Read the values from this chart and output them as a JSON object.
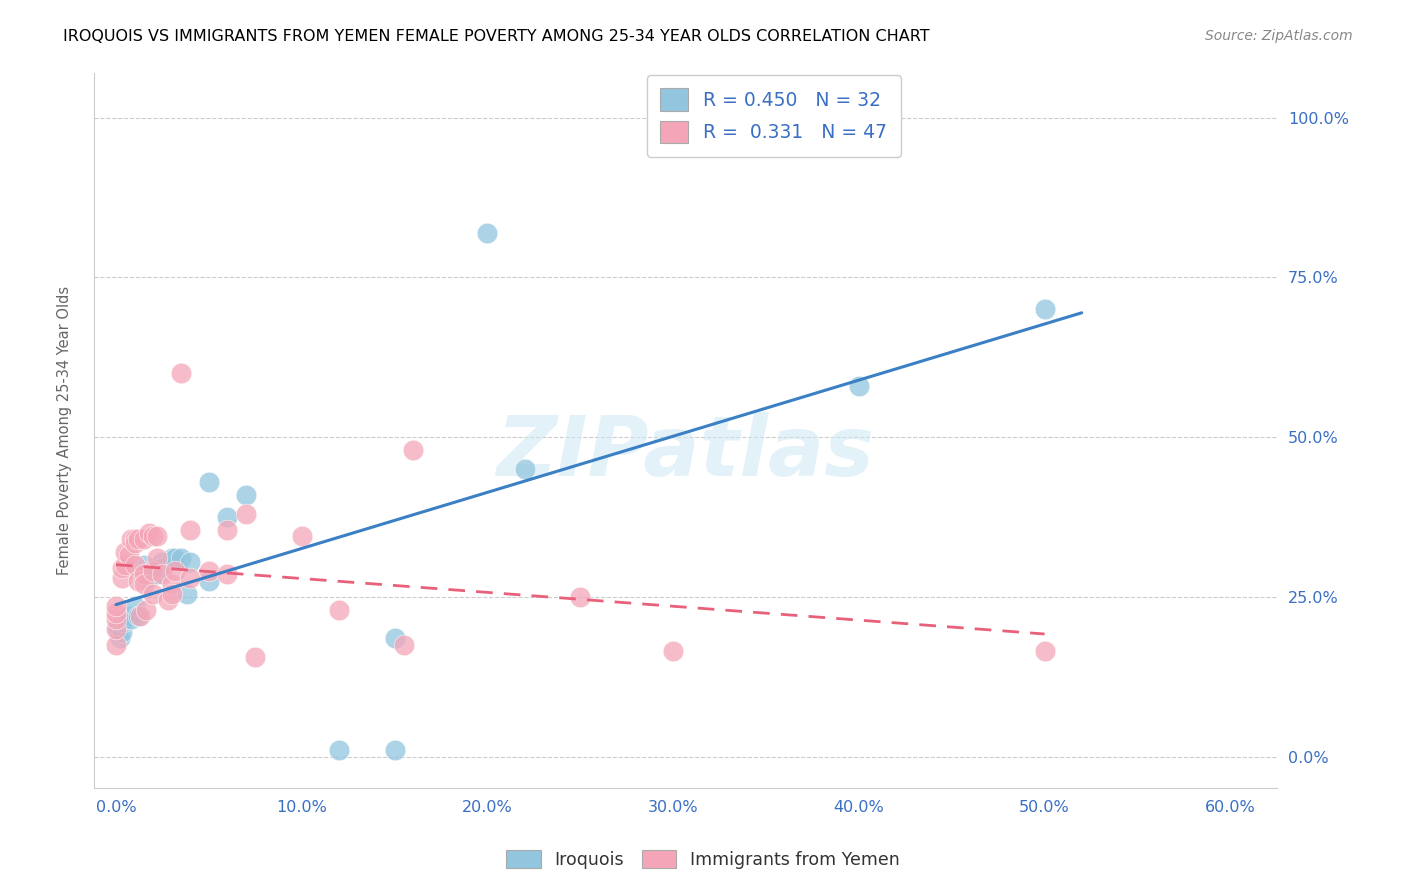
{
  "title": "IROQUOIS VS IMMIGRANTS FROM YEMEN FEMALE POVERTY AMONG 25-34 YEAR OLDS CORRELATION CHART",
  "source": "Source: ZipAtlas.com",
  "ylabel": "Female Poverty Among 25-34 Year Olds",
  "xlabel_ticks": [
    "0.0%",
    "10.0%",
    "20.0%",
    "30.0%",
    "40.0%",
    "50.0%",
    "60.0%"
  ],
  "xlabel_vals": [
    0.0,
    0.1,
    0.2,
    0.3,
    0.4,
    0.5,
    0.6
  ],
  "ylabel_ticks": [
    "0.0%",
    "25.0%",
    "50.0%",
    "75.0%",
    "100.0%"
  ],
  "ylabel_vals": [
    0.0,
    0.25,
    0.5,
    0.75,
    1.0
  ],
  "xlim": [
    -0.012,
    0.625
  ],
  "ylim": [
    -0.05,
    1.07
  ],
  "leg1_text": "R = 0.450   N = 32",
  "leg2_text": "R =  0.331   N = 47",
  "series1_name": "Iroquois",
  "series2_name": "Immigrants from Yemen",
  "color_blue": "#92c5de",
  "color_pink": "#f4a6b8",
  "color_blue_line": "#3b7fc4",
  "color_pink_line": "#e8607a",
  "iroquois_x": [
    0.001,
    0.002,
    0.003,
    0.004,
    0.005,
    0.007,
    0.008,
    0.01,
    0.012,
    0.015,
    0.017,
    0.018,
    0.02,
    0.022,
    0.025,
    0.025,
    0.03,
    0.032,
    0.035,
    0.038,
    0.04,
    0.05,
    0.05,
    0.06,
    0.07,
    0.12,
    0.15,
    0.15,
    0.2,
    0.22,
    0.4,
    0.5
  ],
  "iroquois_y": [
    0.2,
    0.185,
    0.195,
    0.21,
    0.215,
    0.22,
    0.215,
    0.235,
    0.22,
    0.3,
    0.285,
    0.28,
    0.285,
    0.285,
    0.305,
    0.295,
    0.31,
    0.31,
    0.31,
    0.255,
    0.305,
    0.43,
    0.275,
    0.375,
    0.41,
    0.01,
    0.185,
    0.01,
    0.82,
    0.45,
    0.58,
    0.7
  ],
  "yemen_x": [
    0.0,
    0.0,
    0.0,
    0.0,
    0.0,
    0.003,
    0.003,
    0.005,
    0.005,
    0.007,
    0.008,
    0.01,
    0.01,
    0.01,
    0.012,
    0.012,
    0.013,
    0.015,
    0.015,
    0.015,
    0.016,
    0.018,
    0.02,
    0.02,
    0.02,
    0.022,
    0.022,
    0.025,
    0.028,
    0.03,
    0.03,
    0.032,
    0.035,
    0.04,
    0.04,
    0.05,
    0.06,
    0.06,
    0.07,
    0.075,
    0.1,
    0.12,
    0.155,
    0.16,
    0.25,
    0.3,
    0.5
  ],
  "yemen_y": [
    0.175,
    0.2,
    0.215,
    0.225,
    0.235,
    0.28,
    0.295,
    0.3,
    0.32,
    0.315,
    0.34,
    0.34,
    0.335,
    0.3,
    0.34,
    0.275,
    0.22,
    0.34,
    0.285,
    0.27,
    0.23,
    0.35,
    0.345,
    0.29,
    0.255,
    0.345,
    0.31,
    0.285,
    0.245,
    0.27,
    0.255,
    0.29,
    0.6,
    0.355,
    0.28,
    0.29,
    0.355,
    0.285,
    0.38,
    0.155,
    0.345,
    0.23,
    0.175,
    0.48,
    0.25,
    0.165,
    0.165
  ]
}
